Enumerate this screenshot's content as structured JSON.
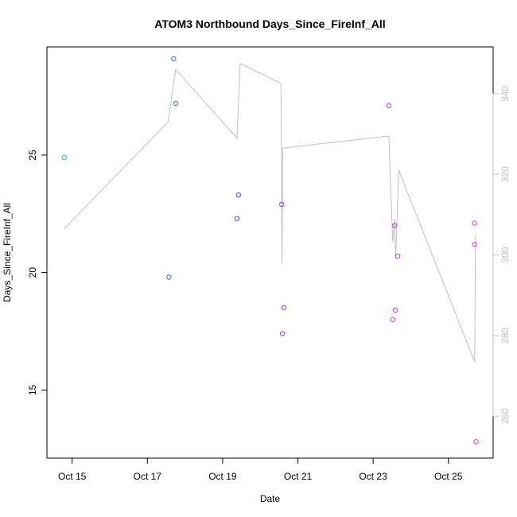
{
  "chart_data": {
    "type": "scatter",
    "title": "ATOM3 Northbound Days_Since_FireInf_All",
    "xlabel": "Date",
    "ylabel": "Days_Since_FireInf_All",
    "x_ticks": [
      {
        "label": "Oct 15",
        "day": 15
      },
      {
        "label": "Oct 17",
        "day": 17
      },
      {
        "label": "Oct 19",
        "day": 19
      },
      {
        "label": "Oct 21",
        "day": 21
      },
      {
        "label": "Oct 23",
        "day": 23
      },
      {
        "label": "Oct 25",
        "day": 25
      }
    ],
    "xlim": [
      14.33,
      26.19
    ],
    "ylim": [
      12.1,
      29.6
    ],
    "y_ticks": [
      15,
      20,
      25
    ],
    "y2lim": [
      249.6,
      351.6
    ],
    "y2_ticks": [
      260,
      280,
      300,
      320,
      340
    ],
    "line_color": "#c0c0c0",
    "points": [
      {
        "x": 14.79,
        "y": 24.9,
        "color": "#2aa7e0"
      },
      {
        "x": 17.57,
        "y": 19.8,
        "color": "#3a6ee6"
      },
      {
        "x": 17.7,
        "y": 29.1,
        "color": "#3d5ee8"
      },
      {
        "x": 17.76,
        "y": 27.2,
        "color": "#3d5ee8"
      },
      {
        "x": 19.38,
        "y": 22.3,
        "color": "#5a3fe6"
      },
      {
        "x": 19.42,
        "y": 23.3,
        "color": "#5a3fe6"
      },
      {
        "x": 20.57,
        "y": 22.9,
        "color": "#8a3ae6"
      },
      {
        "x": 20.59,
        "y": 17.4,
        "color": "#9035e2"
      },
      {
        "x": 20.63,
        "y": 18.5,
        "color": "#9035e2"
      },
      {
        "x": 23.42,
        "y": 27.1,
        "color": "#c23ad6"
      },
      {
        "x": 23.52,
        "y": 18.0,
        "color": "#c83ad4"
      },
      {
        "x": 23.57,
        "y": 22.0,
        "color": "#c83ad4"
      },
      {
        "x": 23.59,
        "y": 18.4,
        "color": "#c83ad4"
      },
      {
        "x": 23.65,
        "y": 20.7,
        "color": "#c83ad4"
      },
      {
        "x": 25.7,
        "y": 22.1,
        "color": "#e040d0"
      },
      {
        "x": 25.7,
        "y": 21.2,
        "color": "#e040d0"
      },
      {
        "x": 25.74,
        "y": 12.8,
        "color": "#e040d0"
      }
    ],
    "secondary_series": [
      {
        "x": 14.79,
        "y": 306.5
      },
      {
        "x": 17.55,
        "y": 333
      },
      {
        "x": 17.75,
        "y": 346
      },
      {
        "x": 19.38,
        "y": 329
      },
      {
        "x": 19.47,
        "y": 347.5
      },
      {
        "x": 20.55,
        "y": 342.5
      },
      {
        "x": 20.58,
        "y": 298
      },
      {
        "x": 20.6,
        "y": 326.5
      },
      {
        "x": 23.42,
        "y": 329.5
      },
      {
        "x": 23.52,
        "y": 303
      },
      {
        "x": 23.57,
        "y": 309
      },
      {
        "x": 23.6,
        "y": 299
      },
      {
        "x": 23.68,
        "y": 321
      },
      {
        "x": 25.7,
        "y": 273.5
      },
      {
        "x": 25.72,
        "y": 305
      }
    ]
  }
}
